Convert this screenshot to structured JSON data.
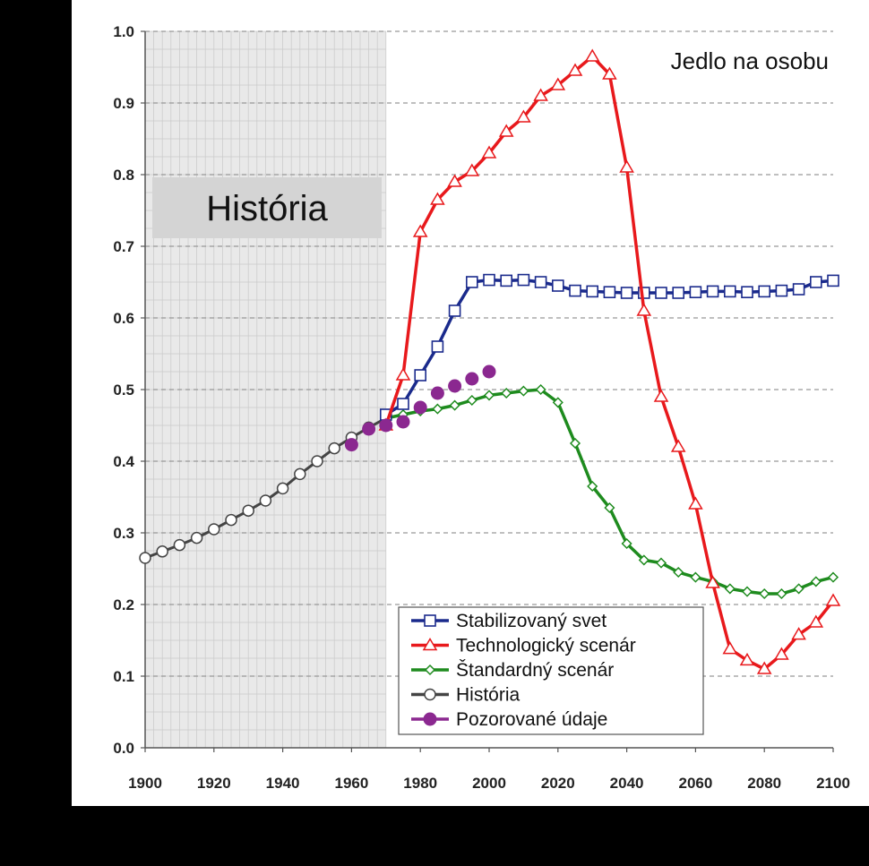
{
  "chart_data": {
    "type": "line",
    "title": "Jedlo na osobu",
    "xlabel": "",
    "ylabel": "",
    "xlim": [
      1900,
      2100
    ],
    "ylim": [
      0.0,
      1.0
    ],
    "x_ticks": [
      "1900",
      "1920",
      "1940",
      "1960",
      "1980",
      "2000",
      "2020",
      "2040",
      "2060",
      "2080",
      "2100"
    ],
    "y_ticks": [
      "0.0",
      "0.1",
      "0.2",
      "0.3",
      "0.4",
      "0.5",
      "0.6",
      "0.7",
      "0.8",
      "0.9",
      "1.0"
    ],
    "grid": true,
    "history_region": {
      "label": "História",
      "x_start": 1900,
      "x_end": 1970
    },
    "legend_position": "bottom-center",
    "series": [
      {
        "name": "Stabilizovaný svet",
        "color": "#1a2a8c",
        "marker": "square",
        "points": [
          [
            1970,
            0.465
          ],
          [
            1975,
            0.48
          ],
          [
            1980,
            0.52
          ],
          [
            1985,
            0.56
          ],
          [
            1990,
            0.61
          ],
          [
            1995,
            0.65
          ],
          [
            2000,
            0.653
          ],
          [
            2005,
            0.652
          ],
          [
            2010,
            0.653
          ],
          [
            2015,
            0.65
          ],
          [
            2020,
            0.645
          ],
          [
            2025,
            0.638
          ],
          [
            2030,
            0.637
          ],
          [
            2035,
            0.636
          ],
          [
            2040,
            0.635
          ],
          [
            2045,
            0.635
          ],
          [
            2050,
            0.635
          ],
          [
            2055,
            0.635
          ],
          [
            2060,
            0.636
          ],
          [
            2065,
            0.637
          ],
          [
            2070,
            0.637
          ],
          [
            2075,
            0.636
          ],
          [
            2080,
            0.637
          ],
          [
            2085,
            0.638
          ],
          [
            2090,
            0.64
          ],
          [
            2095,
            0.65
          ],
          [
            2100,
            0.652
          ]
        ]
      },
      {
        "name": "Technologický scenár",
        "color": "#e8191c",
        "marker": "triangle",
        "points": [
          [
            1970,
            0.45
          ],
          [
            1975,
            0.52
          ],
          [
            1980,
            0.72
          ],
          [
            1985,
            0.765
          ],
          [
            1990,
            0.79
          ],
          [
            1995,
            0.805
          ],
          [
            2000,
            0.83
          ],
          [
            2005,
            0.86
          ],
          [
            2010,
            0.88
          ],
          [
            2015,
            0.91
          ],
          [
            2020,
            0.925
          ],
          [
            2025,
            0.945
          ],
          [
            2030,
            0.965
          ],
          [
            2035,
            0.94
          ],
          [
            2040,
            0.81
          ],
          [
            2045,
            0.61
          ],
          [
            2050,
            0.49
          ],
          [
            2055,
            0.42
          ],
          [
            2060,
            0.34
          ],
          [
            2065,
            0.23
          ],
          [
            2070,
            0.138
          ],
          [
            2075,
            0.122
          ],
          [
            2080,
            0.11
          ],
          [
            2085,
            0.13
          ],
          [
            2090,
            0.158
          ],
          [
            2095,
            0.175
          ],
          [
            2100,
            0.205
          ]
        ]
      },
      {
        "name": "Štandardný scenár",
        "color": "#1e8b1e",
        "marker": "diamond",
        "points": [
          [
            1970,
            0.46
          ],
          [
            1975,
            0.465
          ],
          [
            1980,
            0.47
          ],
          [
            1985,
            0.473
          ],
          [
            1990,
            0.478
          ],
          [
            1995,
            0.485
          ],
          [
            2000,
            0.492
          ],
          [
            2005,
            0.495
          ],
          [
            2010,
            0.498
          ],
          [
            2015,
            0.5
          ],
          [
            2020,
            0.482
          ],
          [
            2025,
            0.425
          ],
          [
            2030,
            0.365
          ],
          [
            2035,
            0.335
          ],
          [
            2040,
            0.285
          ],
          [
            2045,
            0.262
          ],
          [
            2050,
            0.258
          ],
          [
            2055,
            0.245
          ],
          [
            2060,
            0.238
          ],
          [
            2065,
            0.232
          ],
          [
            2070,
            0.222
          ],
          [
            2075,
            0.218
          ],
          [
            2080,
            0.215
          ],
          [
            2085,
            0.215
          ],
          [
            2090,
            0.222
          ],
          [
            2095,
            0.232
          ],
          [
            2100,
            0.238
          ]
        ]
      },
      {
        "name": "História",
        "color": "#444444",
        "marker": "circle-open",
        "points": [
          [
            1900,
            0.265
          ],
          [
            1905,
            0.274
          ],
          [
            1910,
            0.283
          ],
          [
            1915,
            0.293
          ],
          [
            1920,
            0.305
          ],
          [
            1925,
            0.318
          ],
          [
            1930,
            0.331
          ],
          [
            1935,
            0.345
          ],
          [
            1940,
            0.362
          ],
          [
            1945,
            0.382
          ],
          [
            1950,
            0.4
          ],
          [
            1955,
            0.418
          ],
          [
            1960,
            0.433
          ],
          [
            1965,
            0.447
          ],
          [
            1970,
            0.46
          ]
        ]
      },
      {
        "name": "Pozorované údaje",
        "color": "#8b2890",
        "marker": "circle-filled",
        "points": [
          [
            1960,
            0.423
          ],
          [
            1965,
            0.445
          ],
          [
            1970,
            0.45
          ],
          [
            1975,
            0.455
          ],
          [
            1980,
            0.475
          ],
          [
            1985,
            0.495
          ],
          [
            1990,
            0.505
          ],
          [
            1995,
            0.515
          ],
          [
            2000,
            0.525
          ]
        ]
      }
    ]
  }
}
